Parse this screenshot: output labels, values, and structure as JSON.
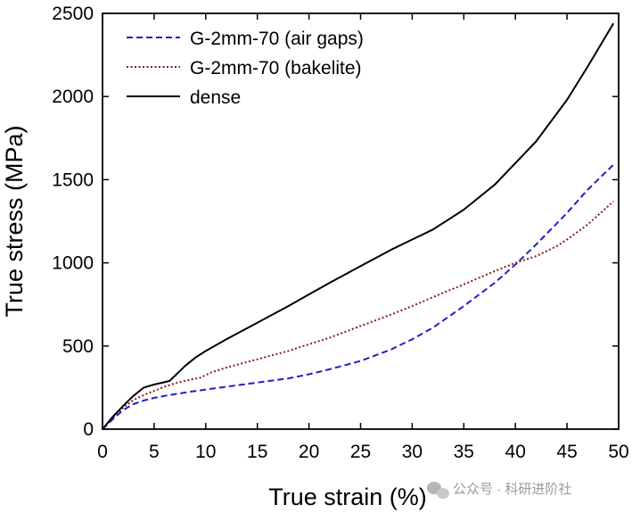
{
  "chart_data": {
    "type": "line",
    "title": "",
    "xlabel": "True strain (%)",
    "ylabel": "True stress (MPa)",
    "xlim": [
      0,
      50
    ],
    "ylim": [
      0,
      2500
    ],
    "x_ticks": [
      0,
      5,
      10,
      15,
      20,
      25,
      30,
      35,
      40,
      45,
      50
    ],
    "y_ticks": [
      0,
      500,
      1000,
      1500,
      2000,
      2500
    ],
    "legend_position": "top-left",
    "series": [
      {
        "name": "G-2mm-70 (air gaps)",
        "color": "#1f1fc8",
        "style": "dashed",
        "x": [
          0,
          1,
          2,
          3,
          4,
          5,
          6,
          8,
          10,
          12,
          15,
          18,
          20,
          22,
          25,
          28,
          30,
          32,
          35,
          38,
          40,
          42,
          45,
          47,
          49.5
        ],
        "y": [
          0,
          60,
          115,
          150,
          172,
          188,
          200,
          220,
          238,
          255,
          280,
          305,
          330,
          360,
          410,
          480,
          540,
          610,
          740,
          880,
          990,
          1110,
          1300,
          1440,
          1590
        ]
      },
      {
        "name": "G-2mm-70 (bakelite)",
        "color": "#8b1a1a",
        "style": "dotted",
        "x": [
          0,
          1,
          2,
          3,
          4,
          5,
          6,
          7,
          8,
          9.5,
          10.5,
          12,
          15,
          18,
          20,
          22,
          25,
          28,
          30,
          33,
          35,
          38,
          40,
          42,
          44,
          45,
          47,
          49.5
        ],
        "y": [
          0,
          70,
          130,
          175,
          205,
          230,
          255,
          275,
          290,
          310,
          340,
          370,
          420,
          470,
          510,
          550,
          620,
          690,
          740,
          820,
          870,
          950,
          1000,
          1040,
          1100,
          1140,
          1230,
          1370
        ]
      },
      {
        "name": "dense",
        "color": "#000000",
        "style": "solid",
        "x": [
          0,
          1,
          2,
          3,
          4,
          5,
          6,
          6.5,
          7,
          8,
          9,
          10,
          12,
          15,
          18,
          20,
          22,
          25,
          28,
          30,
          32,
          35,
          38,
          40,
          42,
          45,
          47,
          49.5
        ],
        "y": [
          0,
          75,
          140,
          200,
          250,
          268,
          282,
          290,
          320,
          380,
          430,
          470,
          540,
          640,
          740,
          810,
          880,
          980,
          1080,
          1140,
          1200,
          1320,
          1470,
          1600,
          1730,
          1980,
          2180,
          2440
        ]
      }
    ]
  },
  "watermark": {
    "icon": "wechat-icon",
    "text": "公众号 · 科研进阶社"
  }
}
